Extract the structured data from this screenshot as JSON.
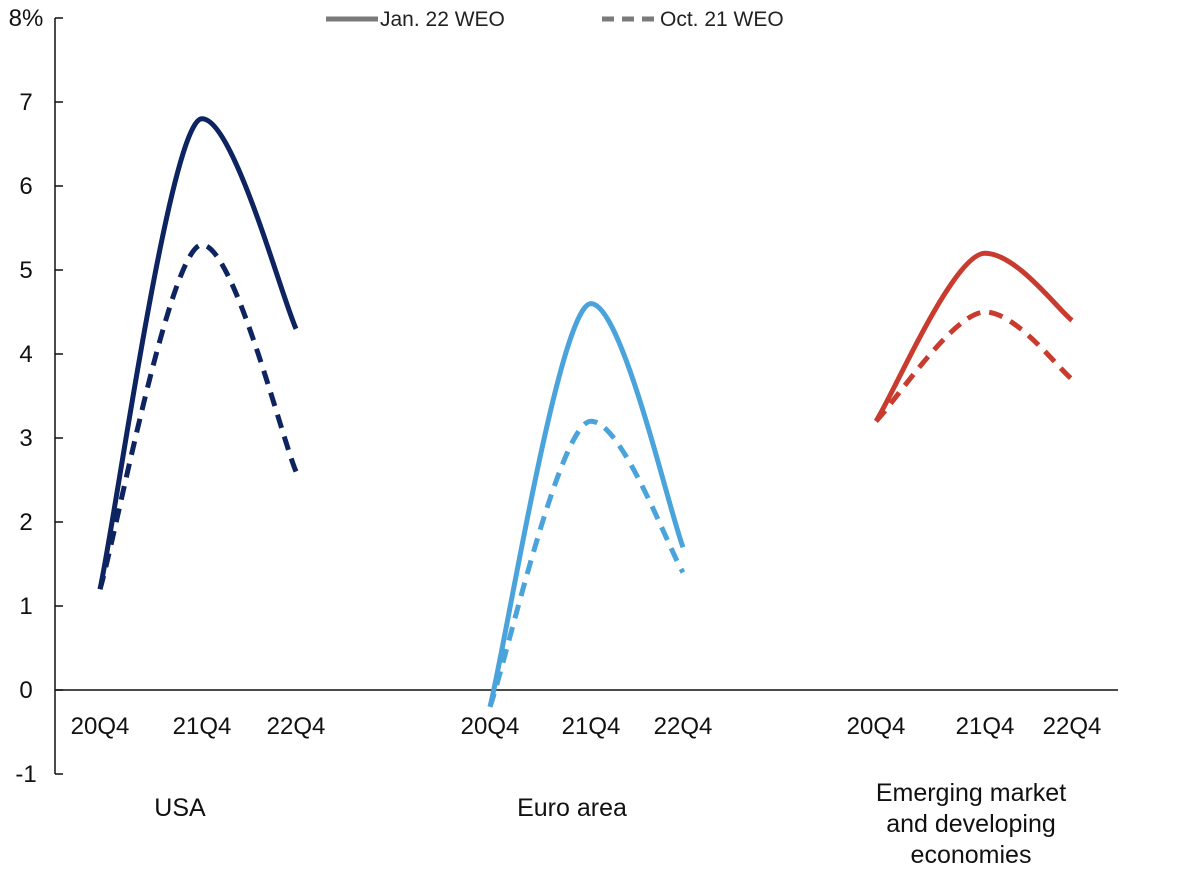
{
  "chart_data": {
    "type": "line",
    "title": "",
    "xlabel": "",
    "ylabel": "",
    "y_unit_label": "8%",
    "ylim": [
      -1,
      8
    ],
    "yticks": [
      -1,
      0,
      1,
      2,
      3,
      4,
      5,
      6,
      7,
      8
    ],
    "ytick_labels": [
      "-1",
      "0",
      "1",
      "2",
      "3",
      "4",
      "5",
      "6",
      "7",
      "8%"
    ],
    "grid": false,
    "legend": {
      "placement": "top-center",
      "entries": [
        {
          "label": "Jan. 22 WEO",
          "style": "solid"
        },
        {
          "label": "Oct. 21 WEO",
          "style": "dashed"
        }
      ]
    },
    "panels": [
      {
        "group_label_lines": [
          "USA"
        ],
        "categories": [
          "20Q4",
          "21Q4",
          "22Q4"
        ],
        "color": "#0d2461",
        "series": [
          {
            "name": "Jan. 22 WEO",
            "style": "solid",
            "values": [
              1.2,
              6.8,
              4.3
            ]
          },
          {
            "name": "Oct. 21 WEO",
            "style": "dashed",
            "values": [
              1.2,
              5.3,
              2.6
            ]
          }
        ]
      },
      {
        "group_label_lines": [
          "Euro area"
        ],
        "categories": [
          "20Q4",
          "21Q4",
          "22Q4"
        ],
        "color": "#4aa3db",
        "series": [
          {
            "name": "Jan. 22 WEO",
            "style": "solid",
            "values": [
              -0.2,
              4.6,
              1.7
            ]
          },
          {
            "name": "Oct. 21 WEO",
            "style": "dashed",
            "values": [
              -0.2,
              3.2,
              1.4
            ]
          }
        ]
      },
      {
        "group_label_lines": [
          "Emerging market",
          "and developing",
          "economies"
        ],
        "categories": [
          "20Q4",
          "21Q4",
          "22Q4"
        ],
        "color": "#c83b2e",
        "series": [
          {
            "name": "Jan. 22 WEO",
            "style": "solid",
            "values": [
              3.2,
              5.2,
              4.4
            ]
          },
          {
            "name": "Oct. 21 WEO",
            "style": "dashed",
            "values": [
              3.2,
              4.5,
              3.7
            ]
          }
        ]
      }
    ]
  },
  "colors": {
    "legend_gray": "#7a7a7a",
    "axis": "#111111"
  }
}
